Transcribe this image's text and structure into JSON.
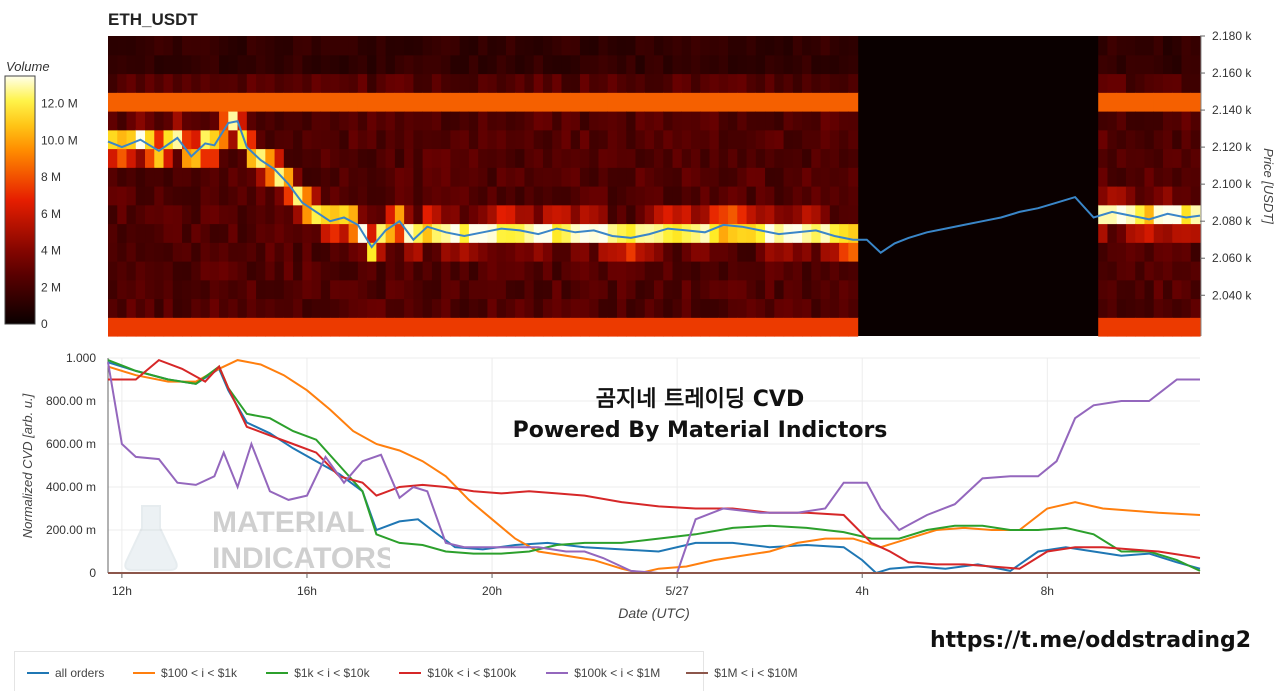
{
  "header": {
    "title": "ETH_USDT"
  },
  "overlay": {
    "line1": "곰지네 트레이딩 CVD",
    "line2": "Powered By Material Indictors",
    "link": "https://t.me/oddstrading2"
  },
  "watermark": {
    "line1": "MATERIAL",
    "line2": "INDICATORS"
  },
  "colorbar": {
    "title": "Volume",
    "ticks": [
      "0",
      "2 M",
      "4 M",
      "6 M",
      "8 M",
      "10.0 M",
      "12.0 M"
    ],
    "tick_values": [
      0,
      2,
      4,
      6,
      8,
      10,
      12
    ],
    "max": 13.5
  },
  "legend": [
    {
      "label": "all orders",
      "color": "#1f77b4"
    },
    {
      "label": "$100 < i < $1k",
      "color": "#ff7f0e"
    },
    {
      "label": "$1k < i < $10k",
      "color": "#2ca02c"
    },
    {
      "label": "$10k < i < $100k",
      "color": "#d62728"
    },
    {
      "label": "$100k < i < $1M",
      "color": "#9467bd"
    },
    {
      "label": "$1M < i < $10M",
      "color": "#8c564b"
    }
  ],
  "chart_data": [
    {
      "type": "heatmap",
      "title": "ETH_USDT",
      "ylabel": "Price [USDT]",
      "y_ticks": [
        "2.180 k",
        "2.160 k",
        "2.140 k",
        "2.120 k",
        "2.100 k",
        "2.080 k",
        "2.060 k",
        "2.040 k"
      ],
      "y_tick_values": [
        2180,
        2160,
        2140,
        2120,
        2100,
        2080,
        2060,
        2040
      ],
      "ylim": [
        2018,
        2180
      ],
      "x_range_hours": [
        11.7,
        35.3
      ],
      "gap_hours": [
        27.9,
        33.15
      ],
      "colorscale": "black-red-yellow-white",
      "price_series": {
        "x_hours": [
          11.7,
          12.0,
          12.4,
          12.8,
          13.2,
          13.5,
          13.8,
          14.0,
          14.3,
          14.5,
          14.7,
          15.0,
          15.3,
          15.6,
          15.9,
          16.2,
          16.5,
          16.8,
          17.1,
          17.4,
          17.7,
          18.0,
          18.3,
          18.6,
          19.0,
          19.4,
          19.8,
          20.2,
          20.6,
          21.0,
          21.4,
          21.8,
          22.2,
          22.6,
          23.0,
          23.4,
          23.8,
          24.2,
          24.6,
          25.0,
          25.4,
          25.8,
          26.2,
          26.6,
          27.0,
          27.4,
          27.8,
          28.1,
          28.4,
          28.7,
          29.0,
          29.4,
          29.8,
          30.2,
          30.6,
          31.0,
          31.4,
          31.8,
          32.2,
          32.6,
          33.0,
          33.4,
          33.8,
          34.2,
          34.6,
          35.0,
          35.3
        ],
        "y": [
          2123,
          2120,
          2124,
          2118,
          2125,
          2115,
          2122,
          2121,
          2133,
          2134,
          2120,
          2113,
          2108,
          2100,
          2090,
          2085,
          2080,
          2082,
          2078,
          2066,
          2075,
          2080,
          2070,
          2077,
          2074,
          2072,
          2074,
          2076,
          2075,
          2073,
          2076,
          2074,
          2075,
          2072,
          2071,
          2073,
          2076,
          2075,
          2074,
          2078,
          2077,
          2075,
          2073,
          2074,
          2075,
          2072,
          2070,
          2070,
          2063,
          2068,
          2071,
          2074,
          2076,
          2078,
          2080,
          2082,
          2085,
          2087,
          2090,
          2093,
          2082,
          2085,
          2083,
          2081,
          2084,
          2082,
          2083
        ]
      }
    },
    {
      "type": "line",
      "xlabel": "Date (UTC)",
      "ylabel": "Normalized CVD [arb. u.]",
      "x_ticks": [
        "12h",
        "16h",
        "20h",
        "5/27",
        "4h",
        "8h"
      ],
      "x_tick_hours": [
        12,
        16,
        20,
        24,
        28,
        32
      ],
      "x_range_hours": [
        11.7,
        35.3
      ],
      "y_ticks": [
        "0",
        "200.00 m",
        "400.00 m",
        "600.00 m",
        "800.00 m",
        "1.000"
      ],
      "y_tick_values": [
        0,
        0.2,
        0.4,
        0.6,
        0.8,
        1.0
      ],
      "ylim": [
        0,
        1.0
      ],
      "series": [
        {
          "name": "all orders",
          "x_hours": [
            11.7,
            12.3,
            13.0,
            13.6,
            14.1,
            14.3,
            14.7,
            15.2,
            15.7,
            16.2,
            16.7,
            17.2,
            17.5,
            18.0,
            18.4,
            18.7,
            19.2,
            19.8,
            20.5,
            21.2,
            22.0,
            22.8,
            23.6,
            24.4,
            25.2,
            26.0,
            26.8,
            27.6,
            28.0,
            28.3,
            28.6,
            29.2,
            29.8,
            30.5,
            31.2,
            31.8,
            32.4,
            33.0,
            33.6,
            34.2,
            34.8,
            35.3
          ],
          "y": [
            0.98,
            0.94,
            0.9,
            0.88,
            0.95,
            0.85,
            0.7,
            0.65,
            0.58,
            0.52,
            0.46,
            0.38,
            0.2,
            0.24,
            0.25,
            0.2,
            0.12,
            0.11,
            0.13,
            0.14,
            0.12,
            0.11,
            0.1,
            0.14,
            0.14,
            0.12,
            0.13,
            0.12,
            0.06,
            0.0,
            0.02,
            0.03,
            0.02,
            0.04,
            0.01,
            0.1,
            0.12,
            0.1,
            0.08,
            0.09,
            0.05,
            0.02
          ]
        },
        {
          "name": "$100 < i < $1k",
          "x_hours": [
            11.7,
            12.3,
            13.0,
            13.6,
            14.1,
            14.5,
            15.0,
            15.5,
            16.0,
            16.5,
            17.0,
            17.5,
            18.0,
            18.5,
            19.0,
            19.5,
            20.0,
            20.5,
            21.0,
            21.6,
            22.2,
            22.8,
            23.2,
            23.6,
            24.2,
            24.8,
            25.4,
            26.0,
            26.6,
            27.2,
            27.8,
            28.4,
            29.0,
            29.6,
            30.2,
            30.8,
            31.4,
            32.0,
            32.6,
            33.2,
            33.8,
            34.4,
            35.3
          ],
          "y": [
            0.96,
            0.92,
            0.89,
            0.89,
            0.95,
            0.99,
            0.97,
            0.92,
            0.85,
            0.76,
            0.66,
            0.6,
            0.57,
            0.52,
            0.45,
            0.34,
            0.25,
            0.16,
            0.1,
            0.08,
            0.06,
            0.02,
            0.0,
            0.02,
            0.03,
            0.06,
            0.08,
            0.1,
            0.14,
            0.16,
            0.16,
            0.12,
            0.16,
            0.2,
            0.21,
            0.2,
            0.2,
            0.3,
            0.33,
            0.3,
            0.29,
            0.28,
            0.27
          ]
        },
        {
          "name": "$1k < i < $10k",
          "x_hours": [
            11.7,
            12.3,
            13.0,
            13.6,
            14.1,
            14.3,
            14.7,
            15.2,
            15.7,
            16.2,
            16.7,
            17.2,
            17.5,
            18.0,
            18.5,
            19.0,
            19.6,
            20.2,
            20.8,
            21.4,
            22.0,
            22.8,
            23.6,
            24.4,
            25.2,
            26.0,
            26.8,
            27.6,
            28.2,
            28.8,
            29.4,
            30.0,
            30.6,
            31.2,
            31.8,
            32.4,
            33.0,
            33.6,
            34.2,
            34.8,
            35.3
          ],
          "y": [
            0.99,
            0.94,
            0.9,
            0.88,
            0.96,
            0.86,
            0.74,
            0.72,
            0.66,
            0.62,
            0.5,
            0.38,
            0.18,
            0.14,
            0.13,
            0.1,
            0.09,
            0.09,
            0.1,
            0.13,
            0.14,
            0.14,
            0.16,
            0.18,
            0.21,
            0.22,
            0.21,
            0.19,
            0.16,
            0.16,
            0.2,
            0.22,
            0.22,
            0.2,
            0.2,
            0.21,
            0.18,
            0.1,
            0.1,
            0.06,
            0.01
          ]
        },
        {
          "name": "$10k < i < $100k",
          "x_hours": [
            11.7,
            12.3,
            12.8,
            13.3,
            13.8,
            14.1,
            14.3,
            14.7,
            15.2,
            15.7,
            16.2,
            16.7,
            17.2,
            17.5,
            18.0,
            18.5,
            19.0,
            19.6,
            20.2,
            20.8,
            21.4,
            22.0,
            22.8,
            23.6,
            24.4,
            25.2,
            26.0,
            26.8,
            27.6,
            28.2,
            28.6,
            29.0,
            29.6,
            30.2,
            30.8,
            31.4,
            32.0,
            32.6,
            33.2,
            33.8,
            34.4,
            35.0,
            35.3
          ],
          "y": [
            0.9,
            0.9,
            0.99,
            0.95,
            0.89,
            0.96,
            0.86,
            0.68,
            0.64,
            0.6,
            0.56,
            0.45,
            0.42,
            0.36,
            0.4,
            0.41,
            0.4,
            0.38,
            0.37,
            0.38,
            0.37,
            0.36,
            0.33,
            0.31,
            0.3,
            0.3,
            0.28,
            0.28,
            0.27,
            0.14,
            0.1,
            0.05,
            0.04,
            0.04,
            0.03,
            0.02,
            0.1,
            0.12,
            0.12,
            0.11,
            0.1,
            0.08,
            0.07
          ]
        },
        {
          "name": "$100k < i < $1M",
          "x_hours": [
            11.7,
            12.0,
            12.3,
            12.8,
            13.2,
            13.6,
            14.0,
            14.2,
            14.5,
            14.8,
            15.2,
            15.6,
            16.0,
            16.4,
            16.8,
            17.2,
            17.6,
            18.0,
            18.3,
            18.6,
            19.0,
            19.4,
            19.8,
            20.4,
            21.0,
            21.6,
            22.0,
            22.4,
            23.0,
            23.6,
            24.0,
            24.4,
            25.0,
            25.8,
            26.6,
            27.2,
            27.6,
            28.1,
            28.4,
            28.8,
            29.4,
            30.0,
            30.6,
            31.2,
            31.8,
            32.2,
            32.6,
            33.0,
            33.6,
            34.2,
            34.8,
            35.3
          ],
          "y": [
            0.98,
            0.6,
            0.54,
            0.53,
            0.42,
            0.41,
            0.45,
            0.56,
            0.4,
            0.6,
            0.38,
            0.34,
            0.36,
            0.54,
            0.42,
            0.52,
            0.55,
            0.35,
            0.4,
            0.38,
            0.14,
            0.12,
            0.12,
            0.12,
            0.12,
            0.1,
            0.1,
            0.07,
            0.01,
            0.0,
            0.0,
            0.25,
            0.3,
            0.28,
            0.28,
            0.3,
            0.42,
            0.42,
            0.3,
            0.2,
            0.27,
            0.32,
            0.44,
            0.45,
            0.45,
            0.52,
            0.72,
            0.78,
            0.8,
            0.8,
            0.9,
            0.9
          ]
        },
        {
          "name": "$1M < i < $10M",
          "x_hours": [
            11.7,
            35.3
          ],
          "y": [
            0.0,
            0.0
          ]
        }
      ]
    }
  ]
}
